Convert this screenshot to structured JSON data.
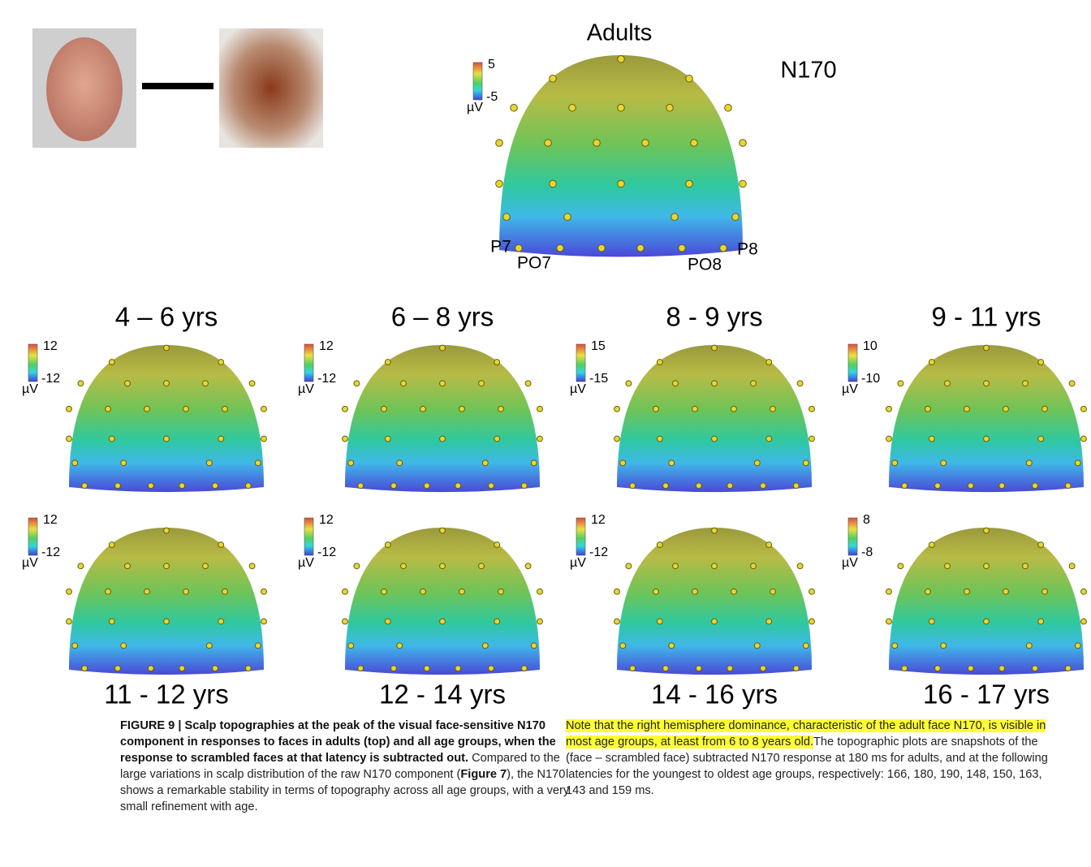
{
  "figure": {
    "top": {
      "title": "Adults",
      "component": "N170",
      "scale": {
        "max": 5,
        "min": -5,
        "unit": "µV"
      },
      "electrodes": [
        "P7",
        "PO7",
        "PO8",
        "P8"
      ]
    },
    "panels": [
      {
        "title": "4 – 6 yrs",
        "max": 12,
        "min": -12,
        "unit": "µV"
      },
      {
        "title": "6 – 8 yrs",
        "max": 12,
        "min": -12,
        "unit": "µV"
      },
      {
        "title": "8 - 9 yrs",
        "max": 15,
        "min": -15,
        "unit": "µV"
      },
      {
        "title": "9 - 11 yrs",
        "max": 10,
        "min": -10,
        "unit": "µV"
      },
      {
        "title": "11 - 12 yrs",
        "max": 12,
        "min": -12,
        "unit": "µV"
      },
      {
        "title": "12 - 14 yrs",
        "max": 12,
        "min": -12,
        "unit": "µV"
      },
      {
        "title": "14 - 16 yrs",
        "max": 12,
        "min": -12,
        "unit": "µV"
      },
      {
        "title": "16 - 17 yrs",
        "max": 8,
        "min": -8,
        "unit": "µV"
      }
    ]
  },
  "caption": {
    "heading": "FIGURE 9 | Scalp topographies at the peak of the visual face-sensitive N170 component in responses to faces in adults (top) and all age groups, when the response to scrambled faces at that latency is subtracted out.",
    "text_1": "Compared to the large variations in scalp distribution of the raw N170 component (",
    "figure_ref": "Figure 7",
    "text_2": "), the N170 shows a remarkable stability in terms of topography across all age groups, with a very small refinement with age.",
    "highlight": "Note that the right hemisphere dominance, characteristic of the adult face N170, is visible in most age groups, at least from 6 to 8 years old.",
    "text_3": "The topographic plots are snapshots of the (face – scrambled face) subtracted N170 response at 180 ms for adults, and at the following latencies for the youngest to oldest age groups, respectively: 166, 180, 190, 148, 150, 163, 143 and 159 ms."
  }
}
